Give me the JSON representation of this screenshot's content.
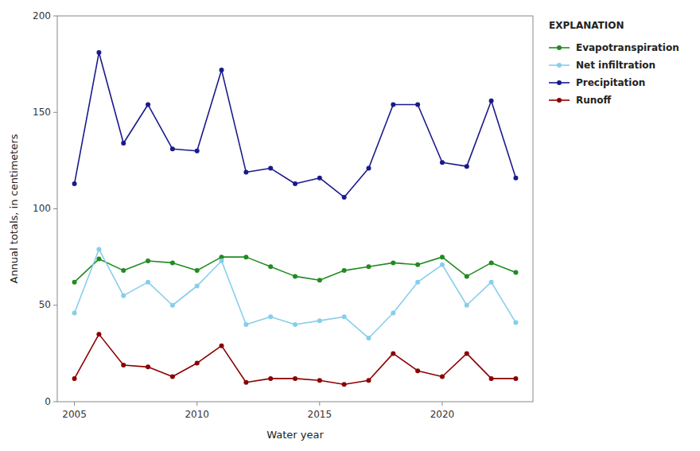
{
  "chart_data": {
    "type": "line",
    "x": [
      2005,
      2006,
      2007,
      2008,
      2009,
      2010,
      2011,
      2012,
      2013,
      2014,
      2015,
      2016,
      2017,
      2018,
      2019,
      2020,
      2021,
      2022,
      2023
    ],
    "series": [
      {
        "name": "Evapotranspiration",
        "color": "#228B22",
        "values": [
          62,
          74,
          68,
          73,
          72,
          68,
          75,
          75,
          70,
          65,
          63,
          68,
          70,
          72,
          71,
          75,
          65,
          72,
          67
        ]
      },
      {
        "name": "Net infiltration",
        "color": "#87CEEB",
        "values": [
          46,
          79,
          55,
          62,
          50,
          60,
          73,
          40,
          44,
          40,
          42,
          44,
          33,
          46,
          62,
          71,
          50,
          62,
          41
        ]
      },
      {
        "name": "Precipitation",
        "color": "#1a1a8c",
        "values": [
          113,
          181,
          134,
          154,
          131,
          130,
          172,
          119,
          121,
          113,
          116,
          106,
          121,
          154,
          154,
          124,
          122,
          156,
          116
        ]
      },
      {
        "name": "Runoff",
        "color": "#8B0000",
        "values": [
          12,
          35,
          19,
          18,
          13,
          20,
          29,
          10,
          12,
          12,
          11,
          9,
          11,
          25,
          16,
          13,
          25,
          12,
          12
        ]
      }
    ],
    "xlabel": "Water year",
    "ylabel": "Annual totals, in centimeters",
    "xlim": [
      2004.3,
      2023.7
    ],
    "xticks": [
      2005,
      2010,
      2015,
      2020
    ],
    "ylim": [
      0,
      200
    ],
    "yticks": [
      0,
      50,
      100,
      150,
      200
    ],
    "grid": false,
    "legend": "right",
    "legend_title": "EXPLANATION",
    "marker": "circle",
    "line_style": "solid"
  }
}
